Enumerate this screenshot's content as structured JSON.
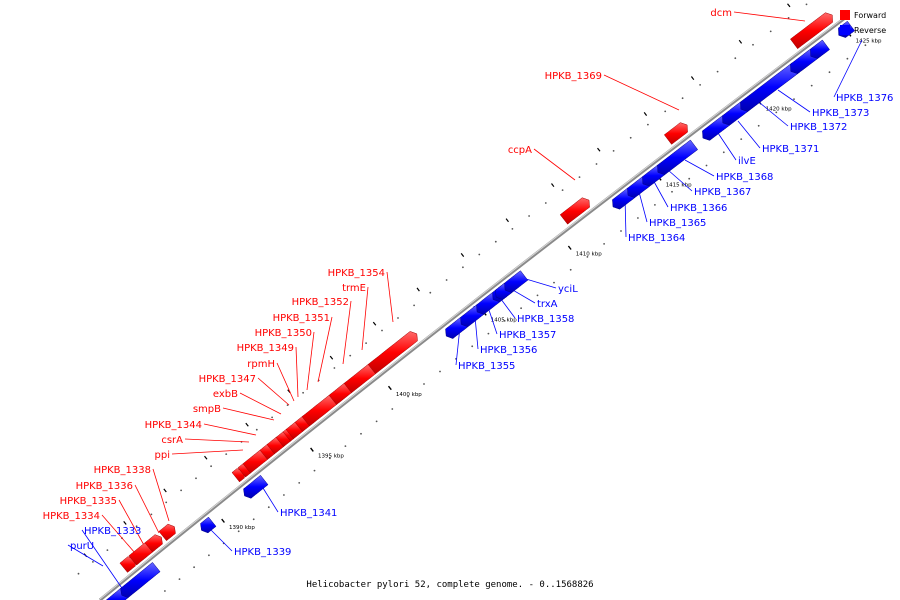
{
  "caption": "Helicobacter pylori 52, complete genome. - 0..1568826",
  "legend": {
    "forward": {
      "label": "Forward",
      "color": "#ff0000"
    },
    "reverse": {
      "label": "Reverse",
      "color": "#0000ff"
    }
  },
  "colors": {
    "forward": "#ff0000",
    "reverse": "#0000ff",
    "backbone": "#888888"
  },
  "ticks": [
    {
      "label": "1390 kbp"
    },
    {
      "label": "1395 kbp"
    },
    {
      "label": "1400 kbp"
    },
    {
      "label": "1405 kbp"
    },
    {
      "label": "1410 kbp"
    },
    {
      "label": "1415 kbp"
    },
    {
      "label": "1420 kbp"
    },
    {
      "label": "1425 kbp"
    }
  ],
  "genes": [
    {
      "label": "HPKB_1333",
      "strand": "reverse"
    },
    {
      "label": "purU",
      "strand": "reverse"
    },
    {
      "label": "HPKB_1334",
      "strand": "forward"
    },
    {
      "label": "HPKB_1335",
      "strand": "forward"
    },
    {
      "label": "HPKB_1336",
      "strand": "forward"
    },
    {
      "label": "HPKB_1338",
      "strand": "forward"
    },
    {
      "label": "HPKB_1339",
      "strand": "reverse"
    },
    {
      "label": "HPKB_1341",
      "strand": "reverse"
    },
    {
      "label": "ppi",
      "strand": "forward"
    },
    {
      "label": "csrA",
      "strand": "forward"
    },
    {
      "label": "HPKB_1344",
      "strand": "forward"
    },
    {
      "label": "smpB",
      "strand": "forward"
    },
    {
      "label": "exbB",
      "strand": "forward"
    },
    {
      "label": "HPKB_1347",
      "strand": "forward"
    },
    {
      "label": "rpmH",
      "strand": "forward"
    },
    {
      "label": "HPKB_1349",
      "strand": "forward"
    },
    {
      "label": "HPKB_1350",
      "strand": "forward"
    },
    {
      "label": "HPKB_1351",
      "strand": "forward"
    },
    {
      "label": "HPKB_1352",
      "strand": "forward"
    },
    {
      "label": "trmE",
      "strand": "forward"
    },
    {
      "label": "HPKB_1354",
      "strand": "forward"
    },
    {
      "label": "HPKB_1355",
      "strand": "reverse"
    },
    {
      "label": "HPKB_1356",
      "strand": "reverse"
    },
    {
      "label": "HPKB_1357",
      "strand": "reverse"
    },
    {
      "label": "HPKB_1358",
      "strand": "reverse"
    },
    {
      "label": "trxA",
      "strand": "reverse"
    },
    {
      "label": "yciL",
      "strand": "reverse"
    },
    {
      "label": "ccpA",
      "strand": "forward"
    },
    {
      "label": "HPKB_1364",
      "strand": "reverse"
    },
    {
      "label": "HPKB_1365",
      "strand": "reverse"
    },
    {
      "label": "HPKB_1366",
      "strand": "reverse"
    },
    {
      "label": "HPKB_1367",
      "strand": "reverse"
    },
    {
      "label": "HPKB_1368",
      "strand": "reverse"
    },
    {
      "label": "ilvE",
      "strand": "reverse"
    },
    {
      "label": "HPKB_1369",
      "strand": "forward"
    },
    {
      "label": "HPKB_1371",
      "strand": "reverse"
    },
    {
      "label": "HPKB_1372",
      "strand": "reverse"
    },
    {
      "label": "HPKB_1373",
      "strand": "reverse"
    },
    {
      "label": "HPKB_1376",
      "strand": "reverse"
    },
    {
      "label": "dcm",
      "strand": "forward"
    }
  ]
}
